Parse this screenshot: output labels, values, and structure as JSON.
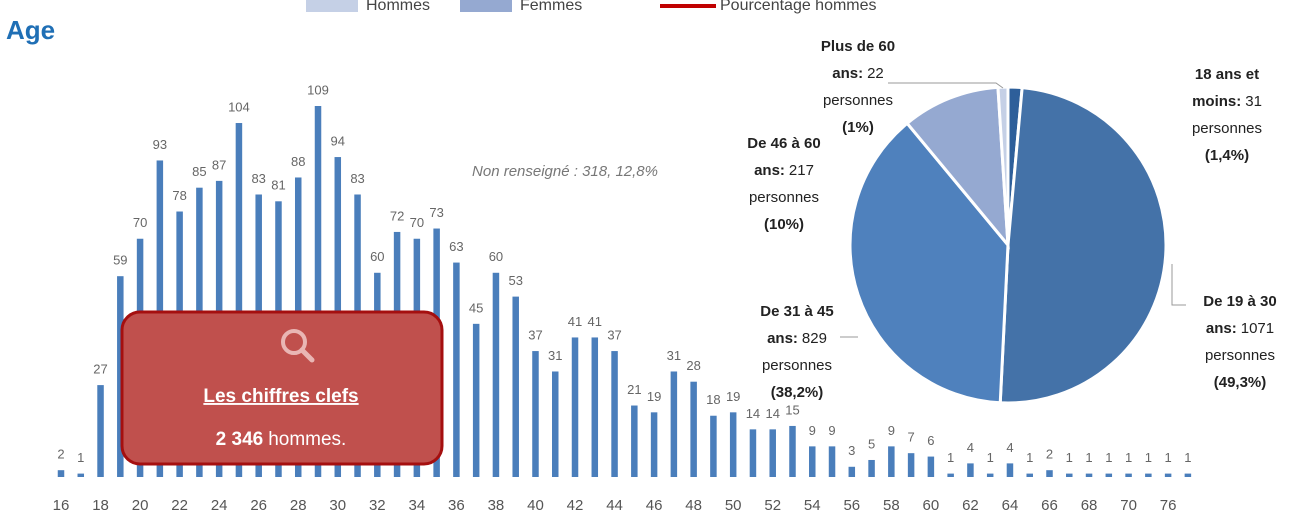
{
  "chart_data": [
    {
      "type": "bar",
      "title": "Age",
      "legend": [
        {
          "name": "Hommes",
          "color": "#c5d0e6",
          "kind": "swatch"
        },
        {
          "name": "Femmes",
          "color": "#95a9d1",
          "kind": "swatch"
        },
        {
          "name": "Pourcentage hommes",
          "color": "#c00000",
          "kind": "line"
        }
      ],
      "annotation": "Non renseigné : 318, 12,8%",
      "categories": [
        "16",
        null,
        "18",
        null,
        "20",
        null,
        "22",
        null,
        "24",
        null,
        "26",
        null,
        "28",
        null,
        "30",
        null,
        "32",
        null,
        "34",
        null,
        "36",
        null,
        "38",
        null,
        "40",
        null,
        "42",
        null,
        "44",
        null,
        "46",
        null,
        "48",
        null,
        "50",
        null,
        "52",
        null,
        "54",
        null,
        "56",
        null,
        "58",
        null,
        "60",
        null,
        "62",
        null,
        "64",
        null,
        "66",
        null,
        "68",
        null,
        "70",
        null,
        "76",
        null
      ],
      "values": [
        2,
        1,
        27,
        59,
        70,
        93,
        78,
        85,
        87,
        104,
        83,
        81,
        88,
        109,
        94,
        83,
        60,
        72,
        70,
        73,
        63,
        45,
        60,
        53,
        37,
        31,
        41,
        41,
        37,
        21,
        19,
        31,
        28,
        18,
        19,
        14,
        14,
        15,
        9,
        9,
        3,
        5,
        9,
        7,
        6,
        1,
        4,
        1,
        4,
        1,
        2,
        1,
        1,
        1,
        1,
        1,
        1,
        1
      ],
      "color": "#4a7ebb",
      "ylim": [
        0,
        110
      ]
    },
    {
      "type": "pie",
      "labels": [
        [
          "18 ans et",
          "moins:"
        ],
        [
          "De 19 à 30",
          "ans:"
        ],
        [
          "De 31 à 45",
          "ans:"
        ],
        [
          "De 46 à 60",
          "ans:"
        ],
        [
          "Plus de 60",
          "ans:"
        ]
      ],
      "values": [
        31,
        1071,
        829,
        217,
        22
      ],
      "unit": "personnes",
      "percents": [
        1.4,
        49.3,
        38.2,
        10,
        1
      ],
      "percent_labels": [
        "(1,4%)",
        "(49,3%)",
        "(38,2%)",
        "(10%)",
        "(1%)"
      ],
      "colors": [
        "#2e5f9a",
        "#4472a8",
        "#4f81bd",
        "#95a9d1",
        "#c5d0e6"
      ]
    }
  ],
  "key_figures": {
    "title": "Les chiffres clefs",
    "value": "2 346",
    "text": "hommes."
  }
}
